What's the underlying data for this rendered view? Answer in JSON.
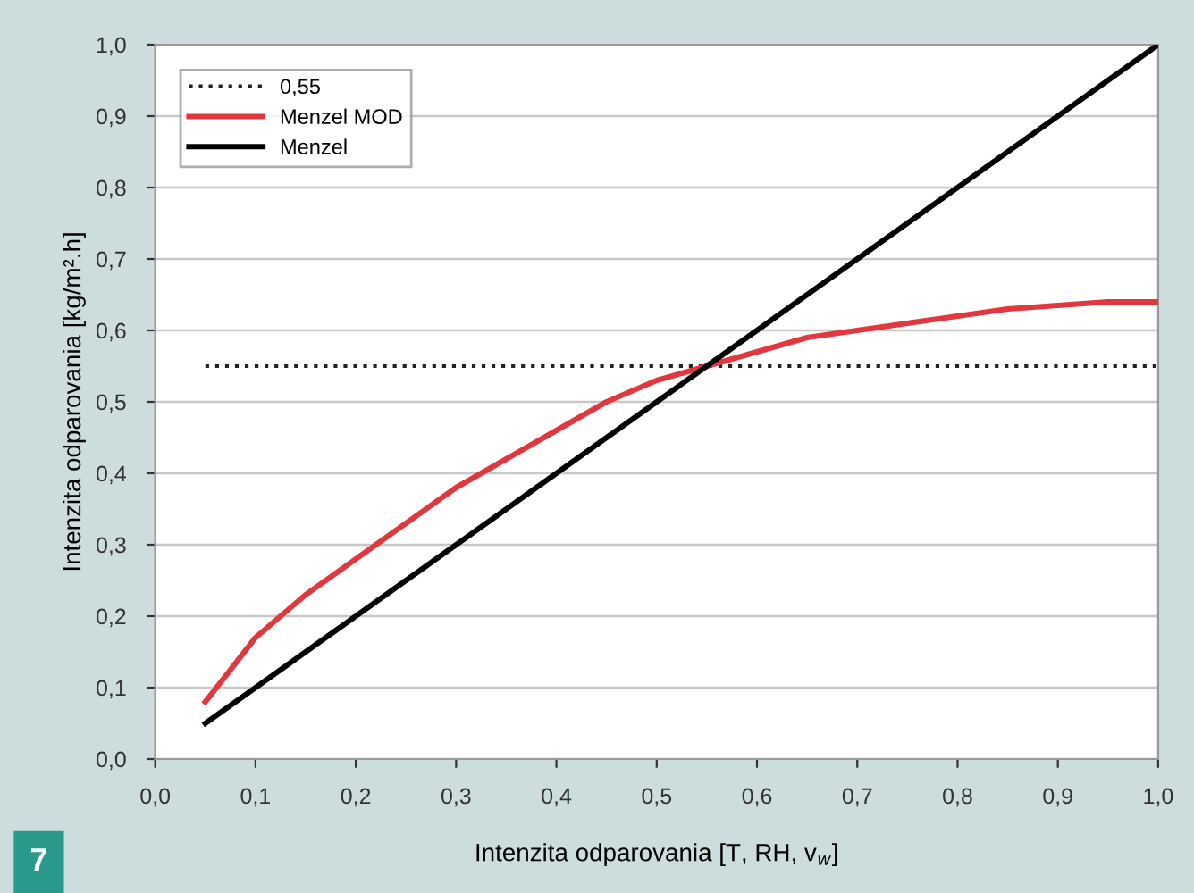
{
  "chart_data": {
    "type": "line",
    "xlabel": "Intenzita odparovania [T, RH, v$_{w}$]",
    "ylabel": "Intenzita odparovania [kg/m².h]",
    "annotations": [
      "7"
    ],
    "series": [
      {
        "name": "0,55",
        "color": "#222222",
        "line_style": "dotted",
        "x": [
          0.05,
          1.0
        ],
        "values": [
          0.55,
          0.55
        ]
      },
      {
        "name": "Menzel MOD",
        "color": "#e0383e",
        "line_style": "solid",
        "x": [
          0.05,
          0.1,
          0.15,
          0.2,
          0.25,
          0.3,
          0.35,
          0.4,
          0.45,
          0.5,
          0.55,
          0.6,
          0.65,
          0.7,
          0.75,
          0.8,
          0.85,
          0.9,
          0.95,
          1.0
        ],
        "values": [
          0.08,
          0.17,
          0.23,
          0.28,
          0.33,
          0.38,
          0.42,
          0.46,
          0.5,
          0.53,
          0.55,
          0.57,
          0.59,
          0.6,
          0.61,
          0.62,
          0.63,
          0.635,
          0.64,
          0.64
        ]
      },
      {
        "name": "Menzel",
        "color": "#000000",
        "line_style": "solid",
        "x": [
          0.05,
          1.0
        ],
        "values": [
          0.05,
          1.0
        ]
      }
    ],
    "xlim": [
      0,
      1
    ],
    "ylim": [
      0,
      1
    ],
    "xticks": [
      {
        "value": 0,
        "label": "0,0"
      },
      {
        "value": 0.1,
        "label": "0,1"
      },
      {
        "value": 0.2,
        "label": "0,2"
      },
      {
        "value": 0.3,
        "label": "0,3"
      },
      {
        "value": 0.4,
        "label": "0,4"
      },
      {
        "value": 0.5,
        "label": "0,5"
      },
      {
        "value": 0.6,
        "label": "0,6"
      },
      {
        "value": 0.7,
        "label": "0,7"
      },
      {
        "value": 0.8,
        "label": "0,8"
      },
      {
        "value": 0.9,
        "label": "0,9"
      },
      {
        "value": 1,
        "label": "1,0"
      }
    ],
    "yticks": [
      {
        "value": 0,
        "label": "0,0"
      },
      {
        "value": 0.1,
        "label": "0,1"
      },
      {
        "value": 0.2,
        "label": "0,2"
      },
      {
        "value": 0.3,
        "label": "0,3"
      },
      {
        "value": 0.4,
        "label": "0,4"
      },
      {
        "value": 0.5,
        "label": "0,5"
      },
      {
        "value": 0.6,
        "label": "0,6"
      },
      {
        "value": 0.7,
        "label": "0,7"
      },
      {
        "value": 0.8,
        "label": "0,8"
      },
      {
        "value": 0.9,
        "label": "0,9"
      },
      {
        "value": 1,
        "label": "1,0"
      }
    ],
    "grid": "y",
    "legend": "top left",
    "marker": "none"
  }
}
